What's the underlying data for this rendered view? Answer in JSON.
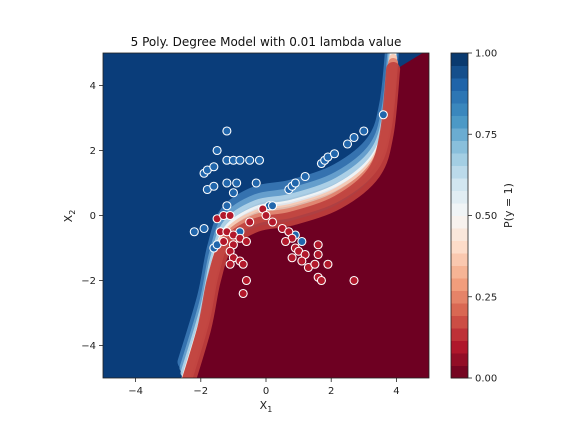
{
  "chart_data": {
    "type": "scatter",
    "title": "5 Poly. Degree Model with 0.01 lambda value",
    "xlabel": "X",
    "xlabel_sub": "1",
    "ylabel": "X",
    "ylabel_sub": "2",
    "xlim": [
      -5,
      5
    ],
    "ylim": [
      -5,
      5
    ],
    "xticks": [
      -4,
      -2,
      0,
      2,
      4
    ],
    "yticks": [
      -4,
      -2,
      0,
      2,
      4
    ],
    "xtick_labels": [
      "−4",
      "−2",
      "0",
      "2",
      "4"
    ],
    "ytick_labels": [
      "−4",
      "−2",
      "0",
      "2",
      "4"
    ],
    "grid": false,
    "background": "filled contour of P(y = 1): blue (1.00) upper-left region, red (0.00) lower-right region, separated by an S-shaped boundary",
    "boundary_points": [
      {
        "x": -2.5,
        "y": -5.0
      },
      {
        "x": -1.9,
        "y": -3.0
      },
      {
        "x": -1.6,
        "y": -1.5
      },
      {
        "x": -1.2,
        "y": -0.4
      },
      {
        "x": -0.3,
        "y": 0.2
      },
      {
        "x": 0.8,
        "y": 0.4
      },
      {
        "x": 2.2,
        "y": 0.9
      },
      {
        "x": 3.3,
        "y": 1.8
      },
      {
        "x": 3.7,
        "y": 3.0
      },
      {
        "x": 3.9,
        "y": 5.0
      }
    ],
    "series": [
      {
        "color": "#2166ac",
        "points": [
          {
            "x": -1.2,
            "y": 2.6
          },
          {
            "x": -1.5,
            "y": 2.0
          },
          {
            "x": -1.9,
            "y": 1.3
          },
          {
            "x": -1.8,
            "y": 1.4
          },
          {
            "x": -1.6,
            "y": 1.5
          },
          {
            "x": -1.2,
            "y": 1.7
          },
          {
            "x": -1.0,
            "y": 1.7
          },
          {
            "x": -0.8,
            "y": 1.7
          },
          {
            "x": -0.5,
            "y": 1.7
          },
          {
            "x": -0.2,
            "y": 1.7
          },
          {
            "x": -1.8,
            "y": 0.8
          },
          {
            "x": -1.6,
            "y": 0.9
          },
          {
            "x": -1.2,
            "y": 1.0
          },
          {
            "x": -0.9,
            "y": 1.0
          },
          {
            "x": -1.0,
            "y": 0.7
          },
          {
            "x": -1.2,
            "y": 0.3
          },
          {
            "x": -0.3,
            "y": 1.0
          },
          {
            "x": 0.1,
            "y": 0.3
          },
          {
            "x": 0.2,
            "y": 0.3
          },
          {
            "x": 0.7,
            "y": 0.8
          },
          {
            "x": 0.8,
            "y": 0.9
          },
          {
            "x": 0.9,
            "y": 1.0
          },
          {
            "x": 1.2,
            "y": 1.2
          },
          {
            "x": 1.7,
            "y": 1.6
          },
          {
            "x": 1.8,
            "y": 1.7
          },
          {
            "x": 1.9,
            "y": 1.8
          },
          {
            "x": 2.1,
            "y": 1.9
          },
          {
            "x": 2.5,
            "y": 2.2
          },
          {
            "x": 2.7,
            "y": 2.4
          },
          {
            "x": 3.0,
            "y": 2.6
          },
          {
            "x": 3.6,
            "y": 3.1
          },
          {
            "x": -2.2,
            "y": -0.5
          },
          {
            "x": -1.9,
            "y": -0.4
          },
          {
            "x": -1.6,
            "y": -1.0
          },
          {
            "x": -1.5,
            "y": -0.9
          },
          {
            "x": -0.8,
            "y": -0.5
          },
          {
            "x": 0.9,
            "y": -0.6
          },
          {
            "x": 1.1,
            "y": -0.8
          }
        ]
      },
      {
        "color": "#b2182b",
        "points": [
          {
            "x": -1.5,
            "y": -0.1
          },
          {
            "x": -1.3,
            "y": 0.0
          },
          {
            "x": -1.1,
            "y": 0.0
          },
          {
            "x": -1.4,
            "y": -0.5
          },
          {
            "x": -1.2,
            "y": -0.5
          },
          {
            "x": -1.0,
            "y": -0.6
          },
          {
            "x": -1.3,
            "y": -0.8
          },
          {
            "x": -1.0,
            "y": -0.9
          },
          {
            "x": -0.8,
            "y": -0.7
          },
          {
            "x": -0.6,
            "y": -0.8
          },
          {
            "x": -1.1,
            "y": -1.1
          },
          {
            "x": -1.0,
            "y": -1.3
          },
          {
            "x": -0.8,
            "y": -1.4
          },
          {
            "x": -1.1,
            "y": -1.5
          },
          {
            "x": -0.7,
            "y": -1.5
          },
          {
            "x": -0.6,
            "y": -2.0
          },
          {
            "x": -0.7,
            "y": -2.4
          },
          {
            "x": -0.5,
            "y": -0.2
          },
          {
            "x": -0.1,
            "y": 0.2
          },
          {
            "x": 0.0,
            "y": 0.0
          },
          {
            "x": 0.2,
            "y": -0.2
          },
          {
            "x": 0.5,
            "y": -0.4
          },
          {
            "x": 0.7,
            "y": -0.5
          },
          {
            "x": 0.8,
            "y": -0.7
          },
          {
            "x": 0.6,
            "y": -0.8
          },
          {
            "x": 0.9,
            "y": -1.0
          },
          {
            "x": 1.0,
            "y": -1.1
          },
          {
            "x": 1.2,
            "y": -1.2
          },
          {
            "x": 1.1,
            "y": -1.4
          },
          {
            "x": 1.3,
            "y": -1.6
          },
          {
            "x": 1.6,
            "y": -0.9
          },
          {
            "x": 1.5,
            "y": -1.5
          },
          {
            "x": 1.6,
            "y": -1.9
          },
          {
            "x": 1.7,
            "y": -2.0
          },
          {
            "x": 1.9,
            "y": -1.5
          },
          {
            "x": 0.8,
            "y": -1.3
          },
          {
            "x": 1.6,
            "y": -1.2
          },
          {
            "x": 2.7,
            "y": -2.0
          }
        ]
      }
    ],
    "colorbar": {
      "label": "P(y = 1)",
      "ticks": [
        0.0,
        0.25,
        0.5,
        0.75,
        1.0
      ],
      "tick_labels": [
        "0.00",
        "0.25",
        "0.50",
        "0.75",
        "1.00"
      ],
      "colormap": "RdBu"
    },
    "colors": {
      "blue_dark": "#0a3d7a",
      "blue_mid": "#2166ac",
      "white_mid": "#f7f7f7",
      "red_mid": "#b2182b",
      "red_dark": "#6e0022"
    }
  }
}
